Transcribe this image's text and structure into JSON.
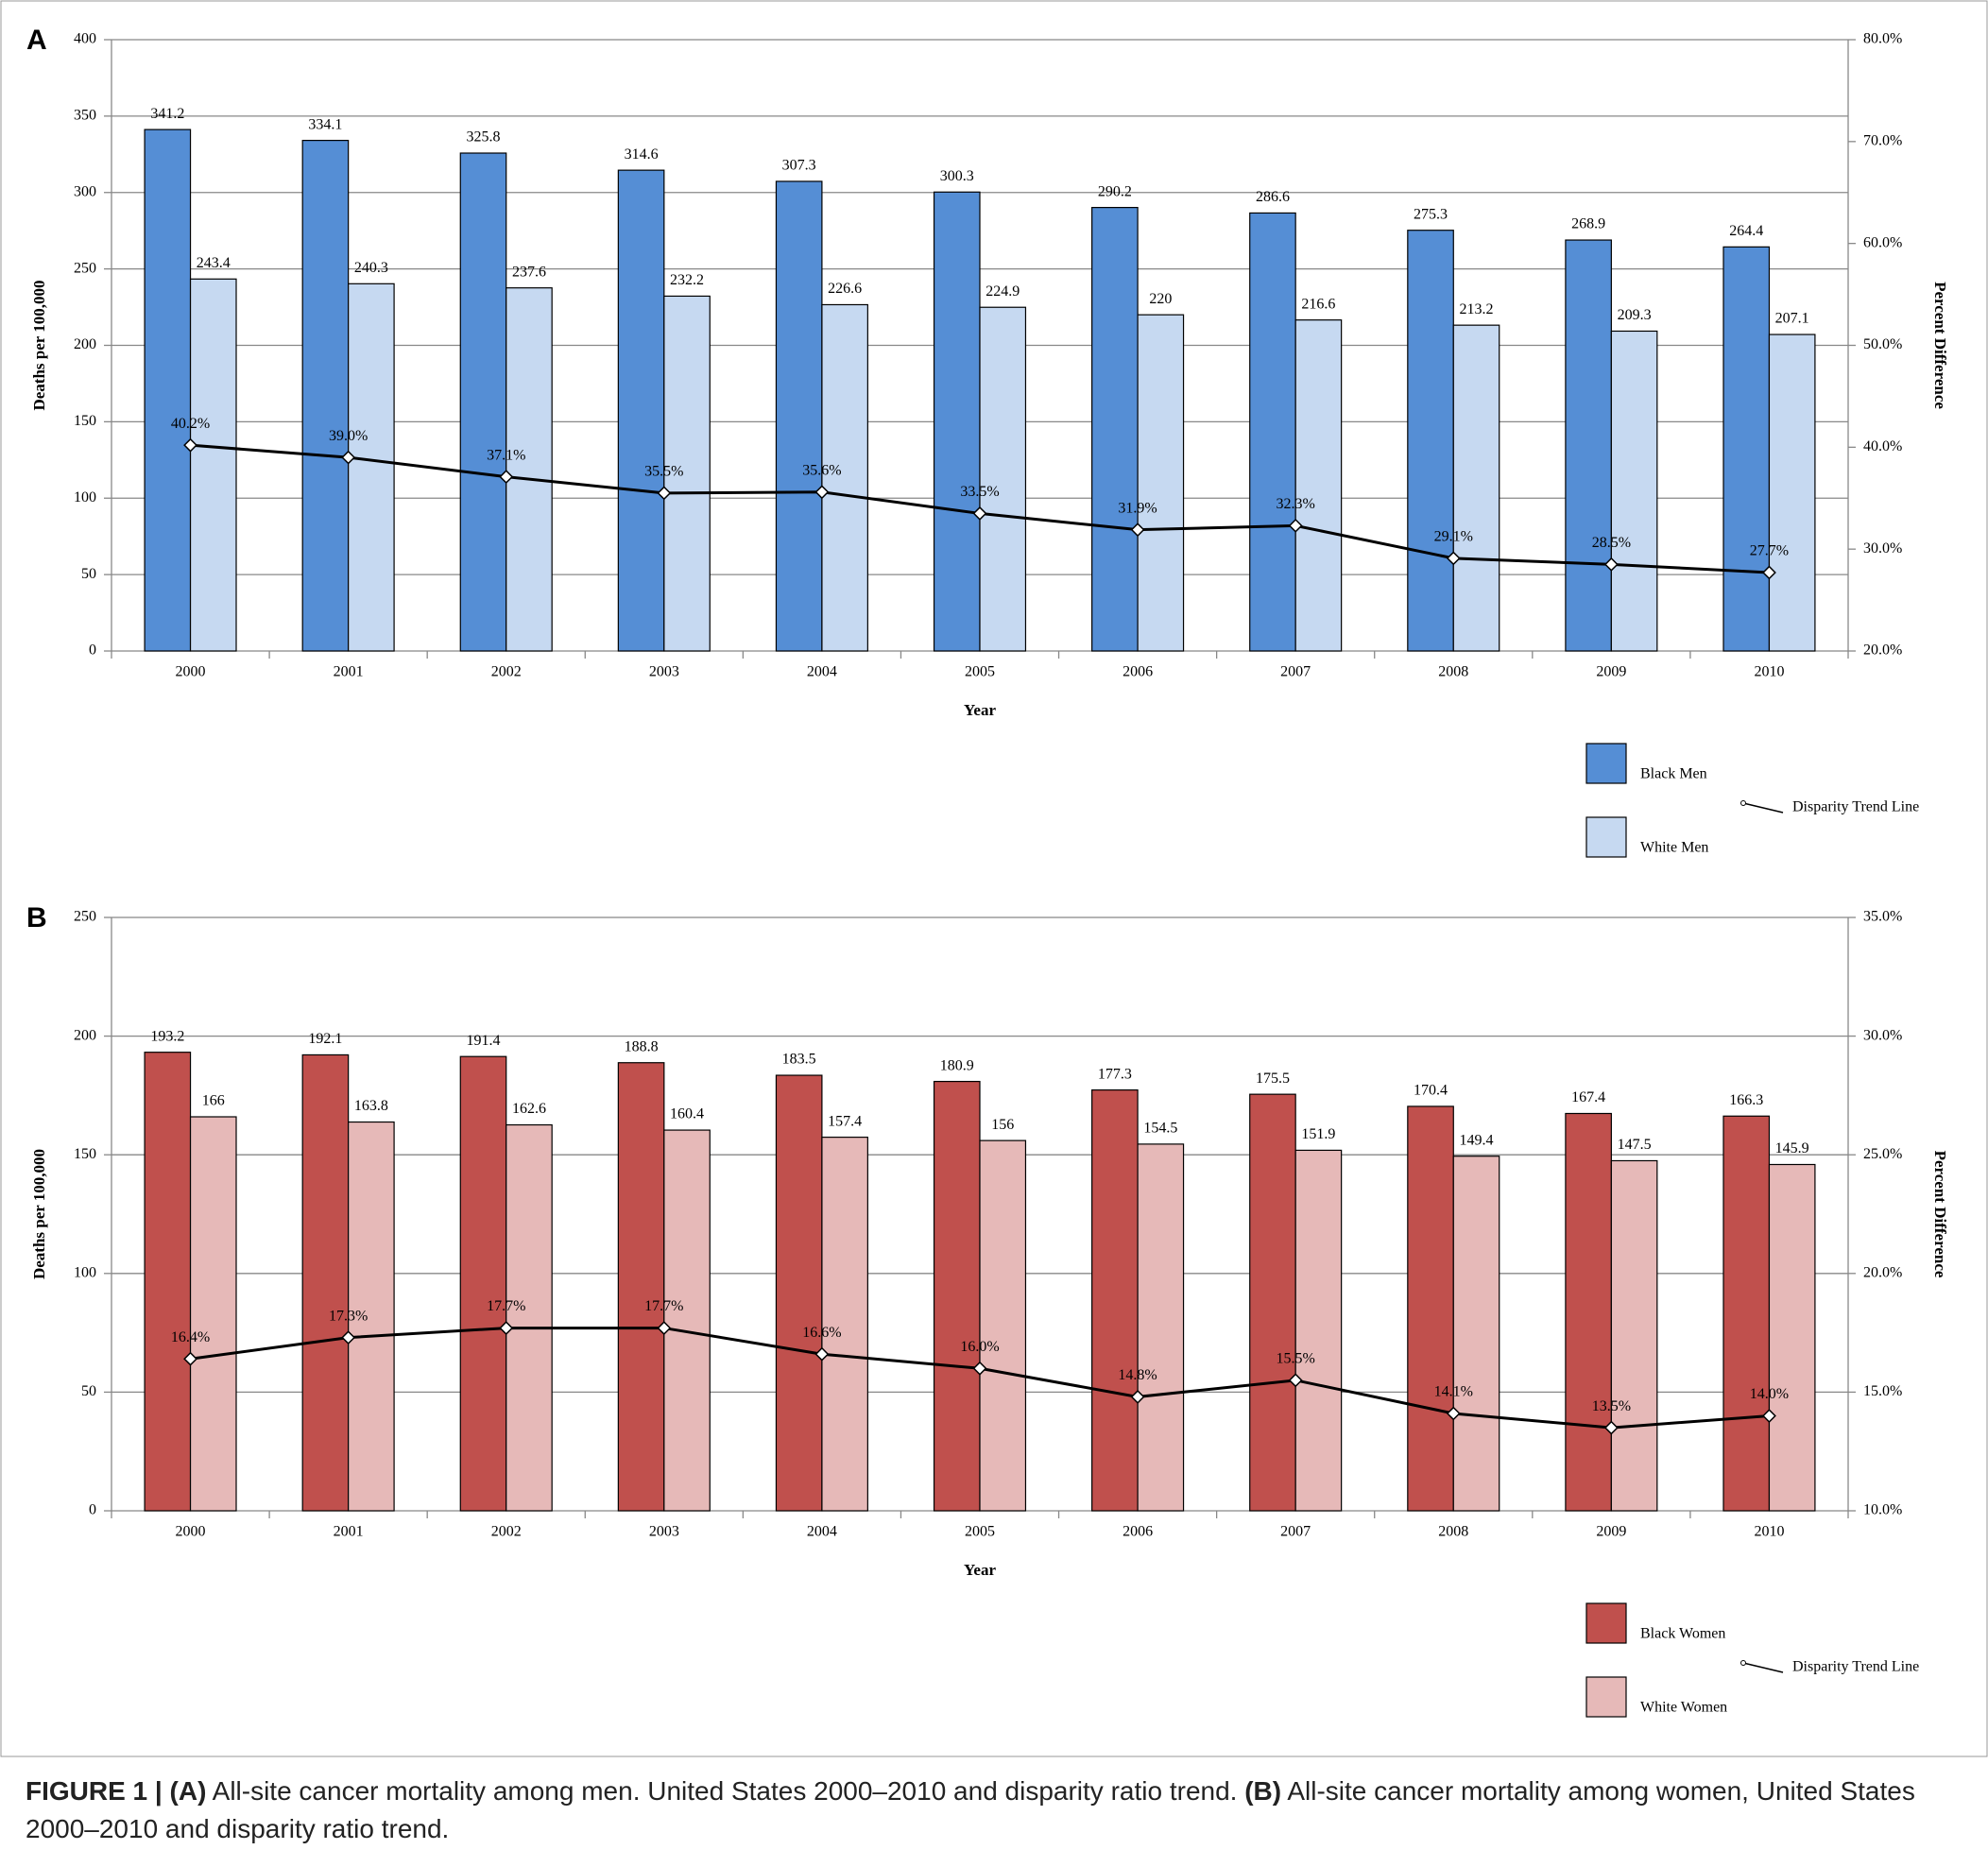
{
  "chart_data": [
    {
      "type": "bar",
      "panel": "A",
      "x_label": "Year",
      "y_label": "Deaths per 100,000",
      "y2_label": "Percent Difference",
      "categories": [
        "2000",
        "2001",
        "2002",
        "2003",
        "2004",
        "2005",
        "2006",
        "2007",
        "2008",
        "2009",
        "2010"
      ],
      "series": [
        {
          "name": "Black Men",
          "color": "#558ed5",
          "values": [
            341.2,
            334.1,
            325.8,
            314.6,
            307.3,
            300.3,
            290.2,
            286.6,
            275.3,
            268.9,
            264.4
          ]
        },
        {
          "name": "White Men",
          "color": "#c6d9f1",
          "values": [
            243.4,
            240.3,
            237.6,
            232.2,
            226.6,
            224.9,
            220,
            216.6,
            213.2,
            209.3,
            207.1
          ]
        },
        {
          "name": "Disparity Trend Line",
          "type": "line",
          "axis": "y2",
          "color": "#000000",
          "values": [
            40.2,
            39.0,
            37.1,
            35.5,
            35.6,
            33.5,
            31.9,
            32.3,
            29.1,
            28.5,
            27.7
          ],
          "value_labels": [
            "40.2%",
            "39.0%",
            "37.1%",
            "35.5%",
            "35.6%",
            "33.5%",
            "31.9%",
            "32.3%",
            "29.1%",
            "28.5%",
            "27.7%"
          ]
        }
      ],
      "ylim": [
        0,
        400
      ],
      "yticks": [
        0,
        50,
        100,
        150,
        200,
        250,
        300,
        350,
        400
      ],
      "y2lim": [
        20,
        80
      ],
      "y2ticks": [
        {
          "value": 20,
          "label": "20.0%"
        },
        {
          "value": 30,
          "label": "30.0%"
        },
        {
          "value": 40,
          "label": "40.0%"
        },
        {
          "value": 50,
          "label": "50.0%"
        },
        {
          "value": 60,
          "label": "60.0%"
        },
        {
          "value": 70,
          "label": "70.0%"
        },
        {
          "value": 80,
          "label": "80.0%"
        }
      ],
      "grid": true,
      "legend": "bottom-right"
    },
    {
      "type": "bar",
      "panel": "B",
      "x_label": "Year",
      "y_label": "Deaths per 100,000",
      "y2_label": "Percent Difference",
      "categories": [
        "2000",
        "2001",
        "2002",
        "2003",
        "2004",
        "2005",
        "2006",
        "2007",
        "2008",
        "2009",
        "2010"
      ],
      "series": [
        {
          "name": "Black Women",
          "color": "#c0504d",
          "values": [
            193.2,
            192.1,
            191.4,
            188.8,
            183.5,
            180.9,
            177.3,
            175.5,
            170.4,
            167.4,
            166.3
          ]
        },
        {
          "name": "White Women",
          "color": "#e6b9b8",
          "values": [
            166,
            163.8,
            162.6,
            160.4,
            157.4,
            156,
            154.5,
            151.9,
            149.4,
            147.5,
            145.9
          ]
        },
        {
          "name": "Disparity Trend Line",
          "type": "line",
          "axis": "y2",
          "color": "#000000",
          "values": [
            16.4,
            17.3,
            17.7,
            17.7,
            16.6,
            16.0,
            14.8,
            15.5,
            14.1,
            13.5,
            14.0
          ],
          "value_labels": [
            "16.4%",
            "17.3%",
            "17.7%",
            "17.7%",
            "16.6%",
            "16.0%",
            "14.8%",
            "15.5%",
            "14.1%",
            "13.5%",
            "14.0%"
          ]
        }
      ],
      "ylim": [
        0,
        250
      ],
      "yticks": [
        0,
        50,
        100,
        150,
        200,
        250
      ],
      "y2lim": [
        10,
        35
      ],
      "y2ticks": [
        {
          "value": 10,
          "label": "10.0%"
        },
        {
          "value": 15,
          "label": "15.0%"
        },
        {
          "value": 20,
          "label": "20.0%"
        },
        {
          "value": 25,
          "label": "25.0%"
        },
        {
          "value": 30,
          "label": "30.0%"
        },
        {
          "value": 35,
          "label": "35.0%"
        }
      ],
      "grid": true,
      "legend": "bottom-right"
    }
  ],
  "caption": {
    "figure": "FIGURE 1 |",
    "a_label": "(A)",
    "a_text": "All-site cancer mortality among men. United States 2000–2010 and disparity ratio trend.",
    "b_label": "(B)",
    "b_text": "All-site cancer mortality among women, United States 2000–2010 and disparity ratio trend."
  }
}
